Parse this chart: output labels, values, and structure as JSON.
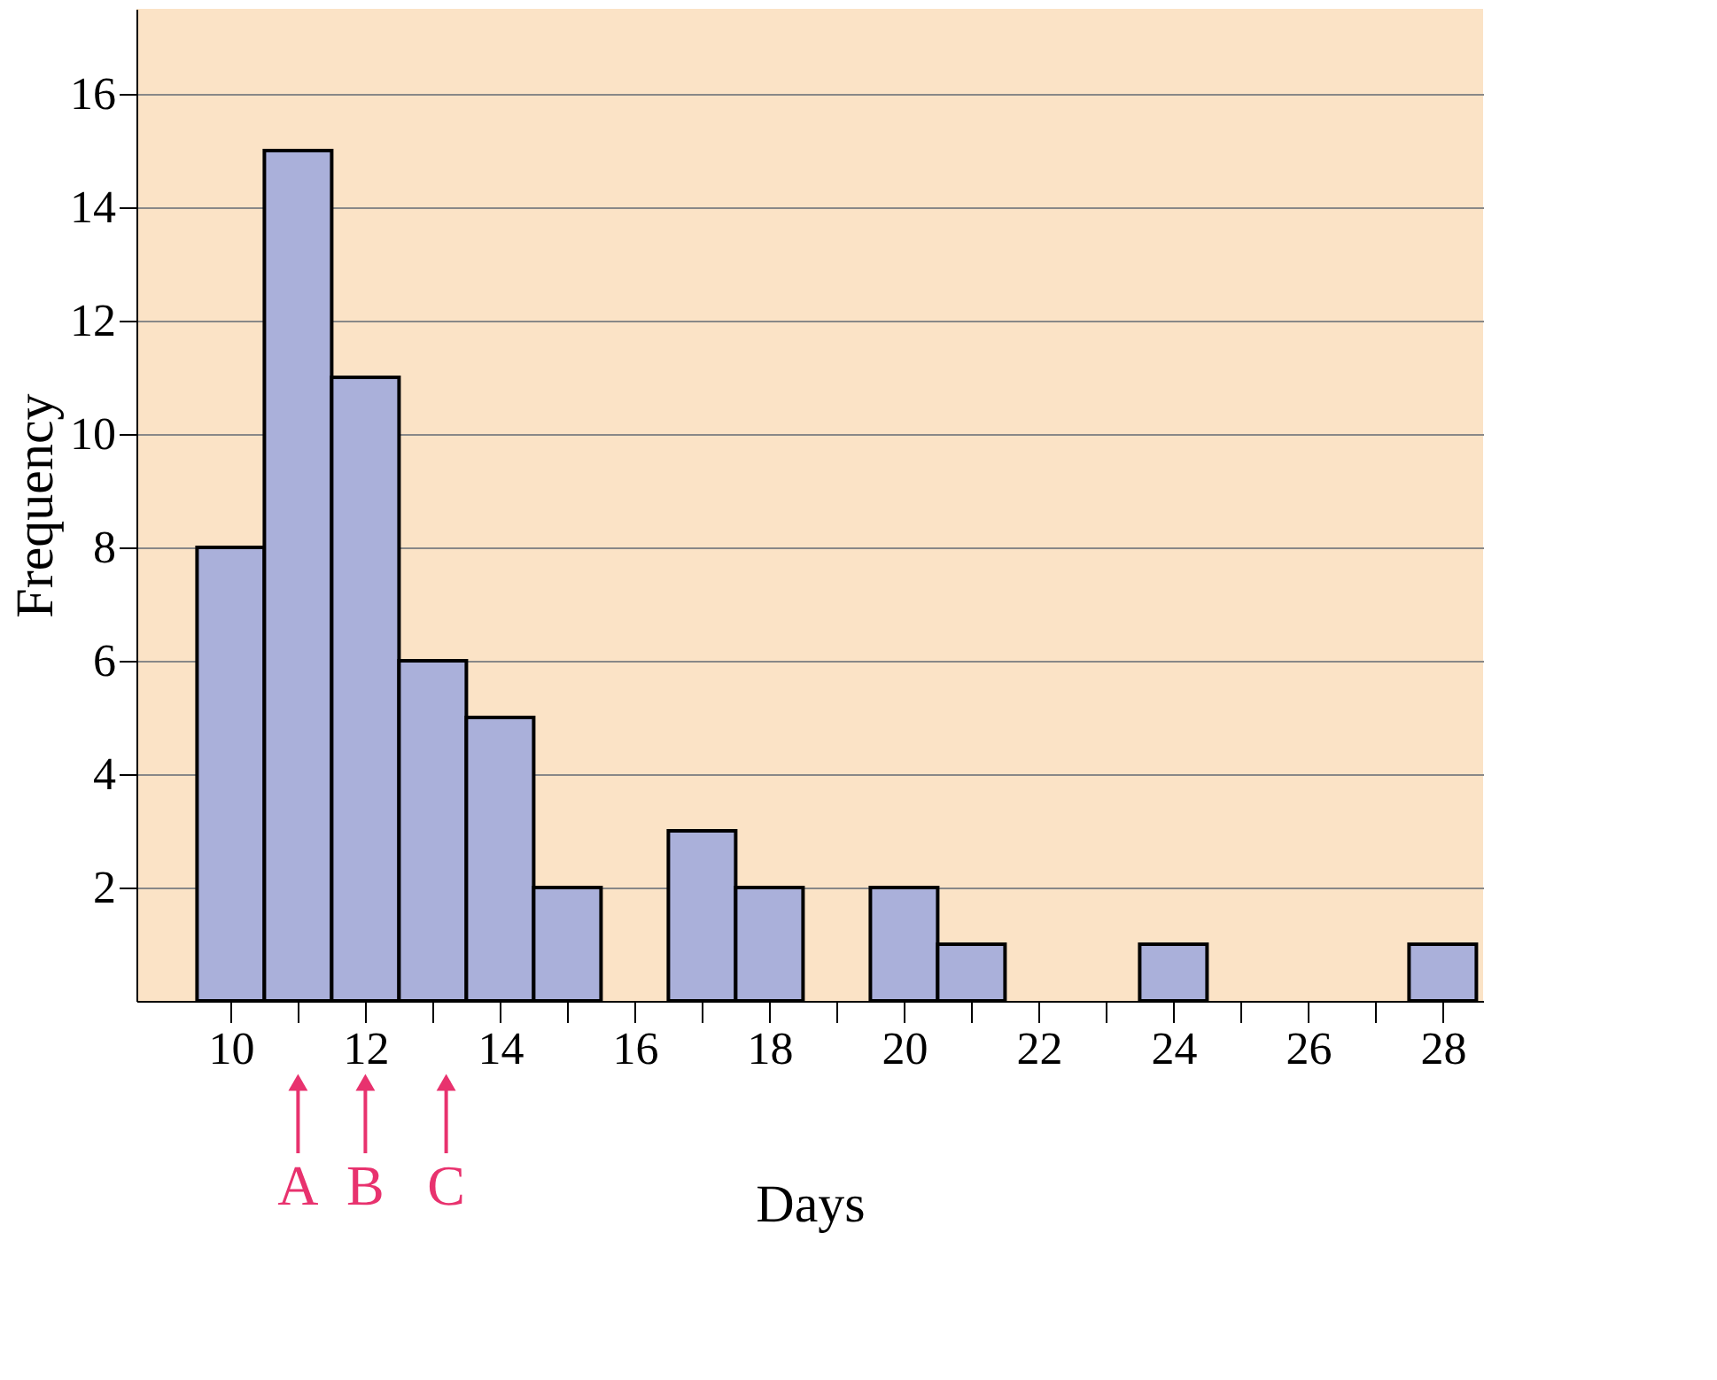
{
  "chart_data": {
    "type": "histogram",
    "xlabel": "Days",
    "ylabel": "Frequency",
    "bins": [
      9.5,
      10.5,
      11.5,
      12.5,
      13.5,
      14.5,
      15.5,
      16.5,
      17.5,
      18.5,
      19.5,
      20.5,
      21.5,
      22.5,
      23.5,
      24.5,
      25.5,
      26.5,
      27.5,
      28.5
    ],
    "values": [
      8,
      15,
      11,
      6,
      5,
      2,
      0,
      3,
      2,
      0,
      2,
      1,
      0,
      0,
      1,
      0,
      0,
      0,
      1
    ],
    "color": "#aab0da",
    "xlim": [
      8.6,
      28.6
    ],
    "xticks": [
      10,
      {
        "value": 11,
        "label": null
      },
      12,
      {
        "value": 13,
        "label": null
      },
      14,
      {
        "value": 15,
        "label": null
      },
      16,
      {
        "value": 17,
        "label": null
      },
      18,
      {
        "value": 19,
        "label": null
      },
      20,
      {
        "value": 21,
        "label": null
      },
      22,
      {
        "value": 23,
        "label": null
      },
      24,
      {
        "value": 25,
        "label": null
      },
      26,
      {
        "value": 27,
        "label": null
      },
      28
    ],
    "ylim": [
      0,
      17.5
    ],
    "yticks": [
      2,
      4,
      6,
      8,
      10,
      12,
      14,
      16
    ],
    "grid": "y",
    "annotations": [
      {
        "text": "A",
        "x": 11,
        "y": 0
      },
      {
        "text": "B",
        "x": 12,
        "y": 0
      },
      {
        "text": "C",
        "x": 13.2,
        "y": 0
      }
    ]
  }
}
